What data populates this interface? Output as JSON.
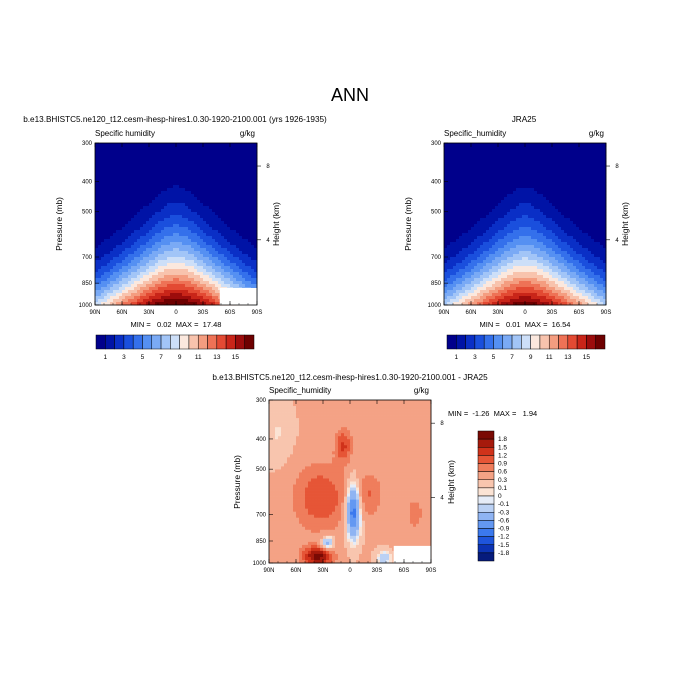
{
  "figure": {
    "main_title": "ANN"
  },
  "chart_data": [
    {
      "type": "heatmap",
      "id": "model",
      "title": "b.e13.BHISTC5.ne120_t12.cesm-ihesp-hires1.0.30-1920-2100.001 (yrs 1926-1935)",
      "left_label": "Specific humidity",
      "right_label": "g/kg",
      "xlabel": "",
      "ylabel": "Pressure (mb)",
      "ylabel_right": "Height (km)",
      "xticks": [
        "90N",
        "60N",
        "30N",
        "0",
        "30S",
        "60S",
        "90S"
      ],
      "yticks": [
        "300",
        "400",
        "500",
        "700",
        "850",
        "1000"
      ],
      "yticks_right": [
        "8",
        "4"
      ],
      "ylim": [
        1000,
        300
      ],
      "y_scale": "log",
      "stats": "MIN =   0.02  MAX =  17.48",
      "colorbar": {
        "labels": [
          "1",
          "3",
          "5",
          "7",
          "9",
          "11",
          "13",
          "15"
        ],
        "orientation": "horizontal"
      },
      "contour_levels": [
        1,
        2,
        3,
        4,
        5,
        6,
        7,
        8,
        9,
        10,
        11,
        12,
        13,
        14,
        15,
        16
      ],
      "min": 0.02,
      "max": 17.48
    },
    {
      "type": "heatmap",
      "id": "obs",
      "title": "JRA25",
      "left_label": "Specific_humidity",
      "right_label": "g/kg",
      "xlabel": "",
      "ylabel": "Pressure (mb)",
      "ylabel_right": "Height (km)",
      "xticks": [
        "90N",
        "60N",
        "30N",
        "0",
        "30S",
        "60S",
        "90S"
      ],
      "yticks": [
        "300",
        "400",
        "500",
        "700",
        "850",
        "1000"
      ],
      "yticks_right": [
        "8",
        "4"
      ],
      "ylim": [
        1000,
        300
      ],
      "y_scale": "log",
      "stats": "MIN =   0.01  MAX =  16.54",
      "colorbar": {
        "labels": [
          "1",
          "3",
          "5",
          "7",
          "9",
          "11",
          "13",
          "15"
        ],
        "orientation": "horizontal"
      },
      "contour_levels": [
        1,
        2,
        3,
        4,
        5,
        6,
        7,
        8,
        9,
        10,
        11,
        12,
        13,
        14,
        15,
        16
      ],
      "min": 0.01,
      "max": 16.54
    },
    {
      "type": "heatmap",
      "id": "diff",
      "title": "b.e13.BHISTC5.ne120_t12.cesm-ihesp-hires1.0.30-1920-2100.001 - JRA25",
      "left_label": "Specific_humidity",
      "right_label": "g/kg",
      "xlabel": "",
      "ylabel": "Pressure (mb)",
      "ylabel_right": "Height (km)",
      "xticks": [
        "90N",
        "60N",
        "30N",
        "0",
        "30S",
        "60S",
        "90S"
      ],
      "yticks": [
        "300",
        "400",
        "500",
        "700",
        "850",
        "1000"
      ],
      "yticks_right": [
        "8",
        "4"
      ],
      "ylim": [
        1000,
        300
      ],
      "y_scale": "log",
      "stats": "MIN =  -1.26  MAX =   1.94",
      "colorbar": {
        "labels": [
          "1.8",
          "1.5",
          "1.2",
          "0.9",
          "0.6",
          "0.3",
          "0.1",
          "0",
          "-0.1",
          "-0.3",
          "-0.6",
          "-0.9",
          "-1.2",
          "-1.5",
          "-1.8"
        ],
        "orientation": "vertical"
      },
      "contour_levels": [
        -1.8,
        -1.5,
        -1.2,
        -0.9,
        -0.6,
        -0.3,
        -0.1,
        0,
        0.1,
        0.3,
        0.6,
        0.9,
        1.2,
        1.5,
        1.8
      ],
      "min": -1.26,
      "max": 1.94
    }
  ],
  "colors": {
    "sequential": [
      "#00008b",
      "#0013a6",
      "#0a2fc6",
      "#1a4fdd",
      "#3470eb",
      "#5590f2",
      "#7aaaf5",
      "#a2c5f7",
      "#cddff8",
      "#fbe8de",
      "#f8c3ad",
      "#f49d80",
      "#ee7256",
      "#e34a33",
      "#c92519",
      "#9c0c0c",
      "#6e0000"
    ],
    "diverging": [
      "#061b7c",
      "#0c33b3",
      "#1e55dc",
      "#3b79ee",
      "#6398f2",
      "#8fb4f3",
      "#bbd1f4",
      "#e6ecf7",
      "#fbe3d4",
      "#f8c5ae",
      "#f4a285",
      "#ef7d5c",
      "#e65536",
      "#d0321a",
      "#a61a0c",
      "#7a0a04"
    ]
  }
}
